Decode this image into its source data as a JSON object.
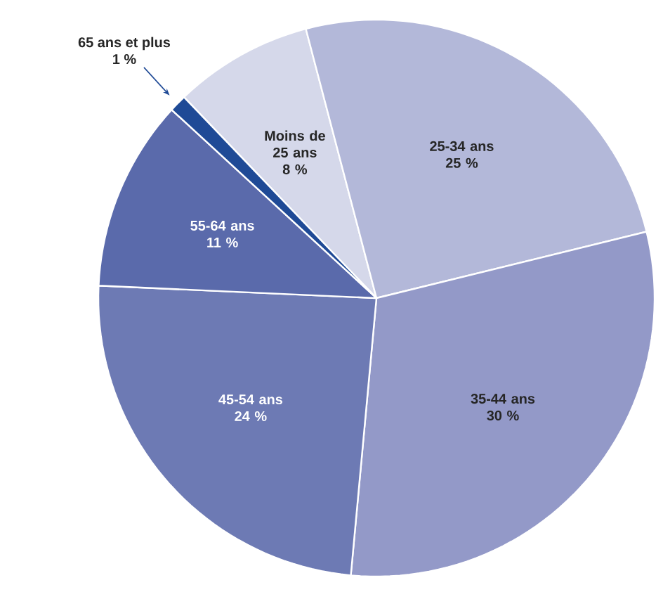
{
  "chart_data": {
    "type": "pie",
    "categories": [
      "Moins de 25 ans",
      "25-34 ans",
      "35-44 ans",
      "45-54 ans",
      "55-64 ans",
      "65 ans et plus"
    ],
    "values": [
      8,
      25,
      30,
      24,
      11,
      1
    ],
    "value_labels": [
      "8 %",
      "25 %",
      "30 %",
      "24 %",
      "11 %",
      "1 %"
    ],
    "colors": [
      "#d5d8ea",
      "#b3b8d9",
      "#9399c8",
      "#6d7ab4",
      "#5a6aab",
      "#1f4a96"
    ]
  }
}
